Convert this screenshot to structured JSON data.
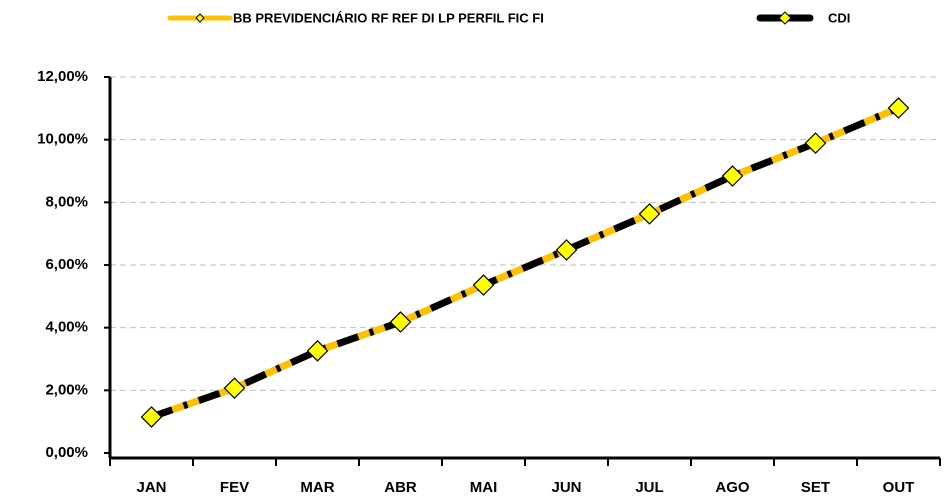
{
  "chart_data": {
    "type": "line",
    "categories": [
      "JAN",
      "FEV",
      "MAR",
      "ABR",
      "MAI",
      "JUN",
      "JUL",
      "AGO",
      "SET",
      "OUT"
    ],
    "series": [
      {
        "name": "BB PREVIDENCIÁRIO RF REF DI LP PERFIL FIC FI",
        "color": "#ffc000",
        "marker_color": "#ffff00",
        "values": [
          1.15,
          2.07,
          3.26,
          4.18,
          5.36,
          6.48,
          7.63,
          8.84,
          9.89,
          11.01
        ]
      },
      {
        "name": "CDI",
        "color": "#000000",
        "marker_color": "#ffff00",
        "values": [
          1.15,
          2.07,
          3.26,
          4.18,
          5.36,
          6.48,
          7.63,
          8.84,
          9.89,
          11.01
        ]
      }
    ],
    "ylim": [
      0,
      12
    ],
    "yticks": [
      {
        "value": 0,
        "label": "0,00%"
      },
      {
        "value": 2,
        "label": "2,00%"
      },
      {
        "value": 4,
        "label": "4,00%"
      },
      {
        "value": 6,
        "label": "6,00%"
      },
      {
        "value": 8,
        "label": "8,00%"
      },
      {
        "value": 10,
        "label": "10,00%"
      },
      {
        "value": 12,
        "label": "12,00%"
      }
    ],
    "grid": true
  }
}
